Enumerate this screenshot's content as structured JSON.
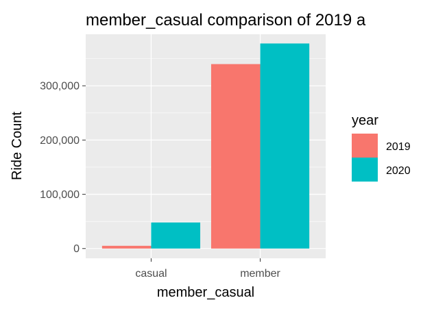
{
  "chart_data": {
    "type": "bar",
    "title": "member_casual comparison of 2019 a",
    "xlabel": "member_casual",
    "ylabel": "Ride Count",
    "categories": [
      "casual",
      "member"
    ],
    "series": [
      {
        "name": "2019",
        "values": [
          5000,
          340000
        ],
        "color": "#F8766D"
      },
      {
        "name": "2020",
        "values": [
          48000,
          378000
        ],
        "color": "#00BFC4"
      }
    ],
    "ylim": [
      -18000,
      395000
    ],
    "yticks": [
      0,
      100000,
      200000,
      300000
    ],
    "ytick_labels": [
      "0",
      "100,000",
      "200,000",
      "300,000"
    ],
    "grid": true,
    "panel_background": "#EBEBEB",
    "legend": {
      "title": "year",
      "placement": "right"
    }
  }
}
